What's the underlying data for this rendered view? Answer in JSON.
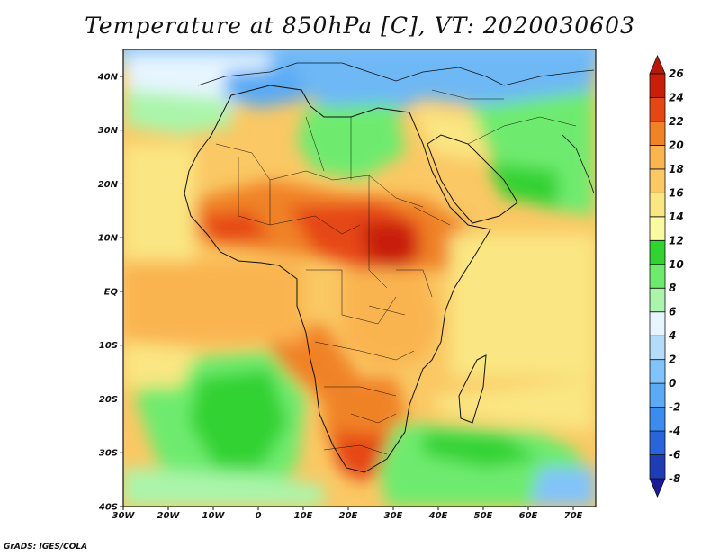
{
  "title": "Temperature at 850hPa [C], VT: 2020030603",
  "credit": "GrADS: IGES/COLA",
  "map": {
    "lon_range": [
      -30,
      75
    ],
    "lat_range": [
      -40,
      45
    ],
    "lon_ticks": [
      {
        "value": -30,
        "label": "30W"
      },
      {
        "value": -20,
        "label": "20W"
      },
      {
        "value": -10,
        "label": "10W"
      },
      {
        "value": 0,
        "label": "0"
      },
      {
        "value": 10,
        "label": "10E"
      },
      {
        "value": 20,
        "label": "20E"
      },
      {
        "value": 30,
        "label": "30E"
      },
      {
        "value": 40,
        "label": "40E"
      },
      {
        "value": 50,
        "label": "50E"
      },
      {
        "value": 60,
        "label": "60E"
      },
      {
        "value": 70,
        "label": "70E"
      }
    ],
    "lat_ticks": [
      {
        "value": 40,
        "label": "40N"
      },
      {
        "value": 30,
        "label": "30N"
      },
      {
        "value": 20,
        "label": "20N"
      },
      {
        "value": 10,
        "label": "10N"
      },
      {
        "value": 0,
        "label": "EQ"
      },
      {
        "value": -10,
        "label": "10S"
      },
      {
        "value": -20,
        "label": "20S"
      },
      {
        "value": -30,
        "label": "30S"
      },
      {
        "value": -40,
        "label": "40S"
      }
    ]
  },
  "colorbar": {
    "levels": [
      "-8",
      "-6",
      "-4",
      "-2",
      "0",
      "2",
      "4",
      "6",
      "8",
      "10",
      "12",
      "14",
      "16",
      "18",
      "20",
      "22",
      "24",
      "26"
    ],
    "colors": [
      "#1a1a96",
      "#1e3cb4",
      "#2864dc",
      "#3c8cf0",
      "#5aaaf5",
      "#82c3fa",
      "#b4dcfa",
      "#e6f5ff",
      "#aaf5aa",
      "#6eeb6e",
      "#32d232",
      "#fafaa0",
      "#fae682",
      "#fac864",
      "#fab450",
      "#f08228",
      "#e64614",
      "#c81e0a",
      "#b4190a"
    ]
  }
}
